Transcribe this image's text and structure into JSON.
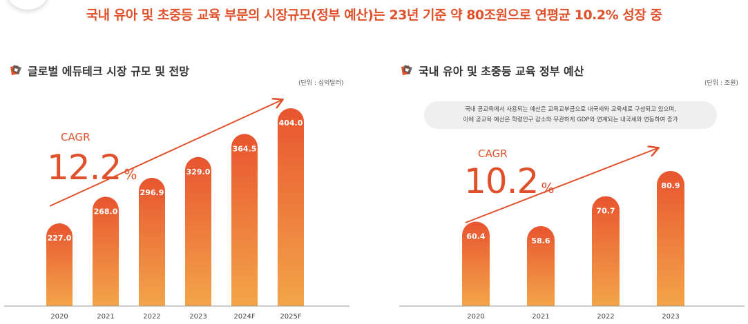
{
  "headline": "국내 유아 및 초중등 교육 부문의 시장규모(정부 예산)는 23년 기준 약 80조원으로 연평균 10.2% 성장 중",
  "colors": {
    "accent": "#e0502a",
    "bar_top": "#e8552f",
    "bar_bottom": "#f3a54a",
    "icon_dark": "#555555"
  },
  "left": {
    "title": "글로벌 에듀테크 시장 규모 및 전망",
    "unit": "(단위 : 십억달러)",
    "cagr_label": "CAGR",
    "cagr_value": "12.2",
    "cagr_pct": "%"
  },
  "right": {
    "title": "국내 유아 및 초중등 교육 정부 예산",
    "unit": "(단위 : 조원)",
    "note_line1": "국내 공교육에서 사용되는 예산은 교육교부금으로 내국세와 교육세로 구성되고 있으며,",
    "note_line2": "이에 공교육 예산은 학령인구 감소와 무관하게 GDP와 연계되는 내국세와 연동하여 증가",
    "cagr_label": "CAGR",
    "cagr_value": "10.2",
    "cagr_pct": "%"
  },
  "chart_data": [
    {
      "type": "bar",
      "title": "글로벌 에듀테크 시장 규모 및 전망",
      "unit": "(단위 : 십억달러)",
      "categories": [
        "2020",
        "2021",
        "2022",
        "2023",
        "2024F",
        "2025F"
      ],
      "values": [
        227.0,
        268.0,
        296.9,
        329.0,
        364.5,
        404.0
      ],
      "value_labels": [
        "227.0",
        "268.0",
        "296.9",
        "329.0",
        "364.5",
        "404.0"
      ],
      "ylim": [
        0,
        404
      ],
      "grid": false,
      "trend_arrow": true
    },
    {
      "type": "bar",
      "title": "국내 유아 및 초중등 교육 정부 예산",
      "unit": "(단위 : 조원)",
      "categories": [
        "2020",
        "2021",
        "2022",
        "2023"
      ],
      "values": [
        60.4,
        58.6,
        70.7,
        80.9
      ],
      "value_labels": [
        "60.4",
        "58.6",
        "70.7",
        "80.9"
      ],
      "ylim": [
        0,
        80.9
      ],
      "grid": false,
      "trend_arrow": true
    }
  ]
}
